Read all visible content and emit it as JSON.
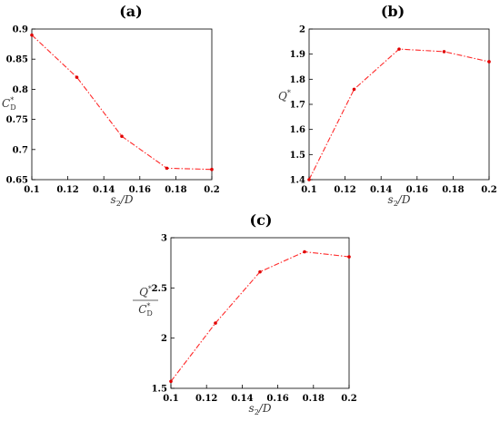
{
  "chart_data": [
    {
      "type": "line",
      "panel": "(a)",
      "xlabel": "s_2/D",
      "ylabel": "C_D^*",
      "x": [
        0.1,
        0.125,
        0.15,
        0.175,
        0.2
      ],
      "y": [
        0.89,
        0.82,
        0.722,
        0.669,
        0.667
      ],
      "xlim": [
        0.1,
        0.2
      ],
      "ylim": [
        0.65,
        0.9
      ],
      "xticks": [
        "0.1",
        "0.12",
        "0.14",
        "0.16",
        "0.18",
        "0.2"
      ],
      "yticks": [
        "0.65",
        "0.7",
        "0.75",
        "0.8",
        "0.85",
        "0.9"
      ],
      "color": "#ff2a2a",
      "grid": false
    },
    {
      "type": "line",
      "panel": "(b)",
      "xlabel": "s_2/D",
      "ylabel": "Q^*",
      "x": [
        0.1,
        0.125,
        0.15,
        0.175,
        0.2
      ],
      "y": [
        1.4,
        1.76,
        1.92,
        1.91,
        1.87
      ],
      "xlim": [
        0.1,
        0.2
      ],
      "ylim": [
        1.4,
        2.0
      ],
      "xticks": [
        "0.1",
        "0.12",
        "0.14",
        "0.16",
        "0.18",
        "0.2"
      ],
      "yticks": [
        "1.4",
        "1.5",
        "1.6",
        "1.7",
        "1.8",
        "1.9",
        "2"
      ],
      "color": "#ff2a2a",
      "grid": false
    },
    {
      "type": "line",
      "panel": "(c)",
      "xlabel": "s_2/D",
      "ylabel": "Q^*/C_D^*",
      "x": [
        0.1,
        0.125,
        0.15,
        0.175,
        0.2
      ],
      "y": [
        1.57,
        2.15,
        2.66,
        2.86,
        2.81
      ],
      "xlim": [
        0.1,
        0.2
      ],
      "ylim": [
        1.5,
        3.0
      ],
      "xticks": [
        "0.1",
        "0.12",
        "0.14",
        "0.16",
        "0.18",
        "0.2"
      ],
      "yticks": [
        "1.5",
        "2",
        "2.5",
        "3"
      ],
      "color": "#ff2a2a",
      "grid": false
    }
  ],
  "labels": {
    "s": "s",
    "sub2": "2",
    "overD": "/D",
    "C": "C",
    "subD": "D",
    "star": "*",
    "Q": "Q"
  }
}
